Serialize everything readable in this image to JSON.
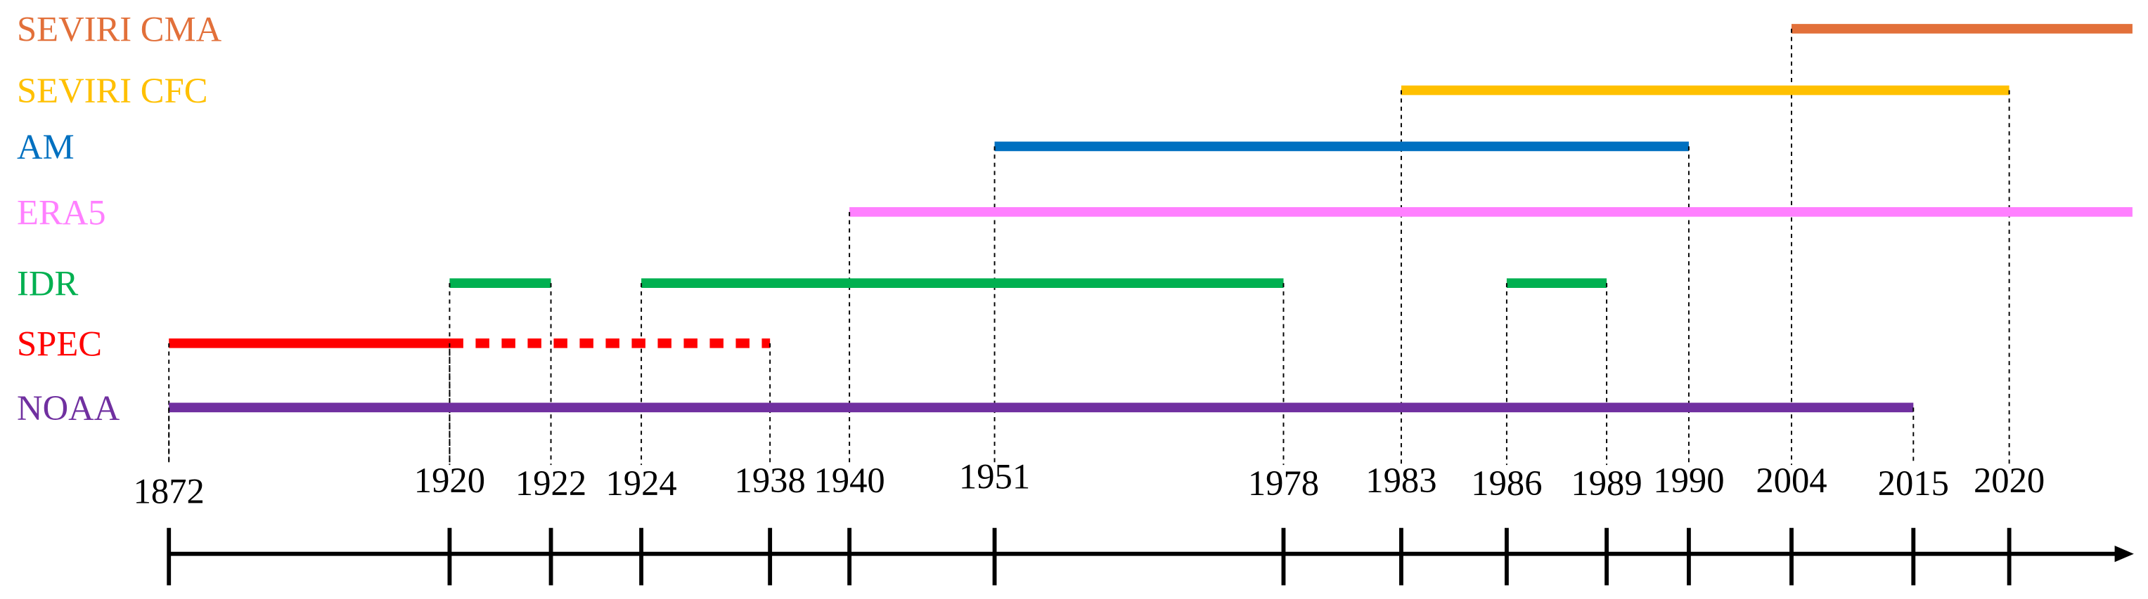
{
  "chart_data": {
    "type": "timeline",
    "xticks": [
      1872,
      1920,
      1922,
      1924,
      1938,
      1940,
      1951,
      1978,
      1983,
      1986,
      1989,
      1990,
      2004,
      2015,
      2020
    ],
    "series": [
      {
        "name": "SEVIRI CMA",
        "color": "#e2703a",
        "segments": [
          {
            "start": 2004,
            "end": null
          }
        ]
      },
      {
        "name": "SEVIRI CFC",
        "color": "#ffc000",
        "segments": [
          {
            "start": 1983,
            "end": 2020
          }
        ]
      },
      {
        "name": "AM",
        "color": "#0070c0",
        "segments": [
          {
            "start": 1951,
            "end": 1990
          }
        ]
      },
      {
        "name": "ERA5",
        "color": "#ff80ff",
        "segments": [
          {
            "start": 1940,
            "end": null
          }
        ]
      },
      {
        "name": "IDR",
        "color": "#00b050",
        "segments": [
          {
            "start": 1920,
            "end": 1922
          },
          {
            "start": 1924,
            "end": 1978
          },
          {
            "start": 1986,
            "end": 1989
          }
        ]
      },
      {
        "name": "SPEC",
        "color": "#ff0000",
        "segments": [
          {
            "start": 1872,
            "end": 1920
          },
          {
            "start": 1920,
            "end": 1938,
            "style": "dashed"
          }
        ]
      },
      {
        "name": "NOAA",
        "color": "#7030a0",
        "segments": [
          {
            "start": 1872,
            "end": 2015
          }
        ]
      }
    ]
  }
}
